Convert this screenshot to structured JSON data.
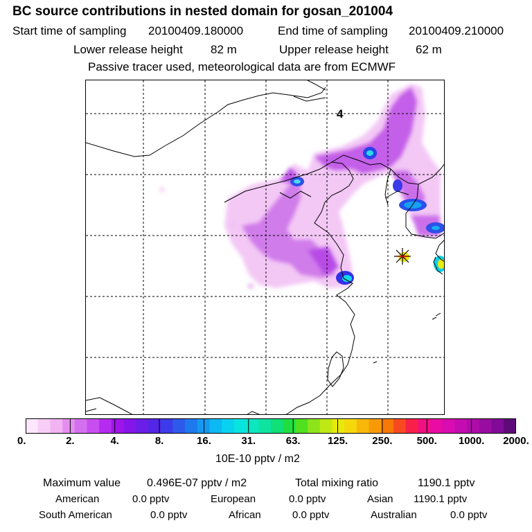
{
  "header": {
    "title": "BC  source contributions in nested domain for gosan_201004",
    "start_label": "Start time of sampling",
    "start_time": "20100409.180000",
    "end_label": "End time of sampling",
    "end_time": "20100409.210000",
    "lower_label": "Lower release height",
    "lower_value": "82 m",
    "upper_label": "Upper release height",
    "upper_value": "62 m",
    "tracer_note": "Passive tracer used, meteorological data are from ECMWF"
  },
  "map": {
    "day_label": "4",
    "release_marker": "asterisk-star-icon"
  },
  "colorbar": {
    "ticks": [
      "0.",
      "2.",
      "4.",
      "8.",
      "16.",
      "31.",
      "63.",
      "125.",
      "250.",
      "500.",
      "1000.",
      "2000."
    ],
    "units": "10E-10 pptv / m2",
    "colors": [
      "#fde7fd",
      "#f8cdf8",
      "#f2b3f2",
      "#e48fef",
      "#d470ef",
      "#c94ef0",
      "#b52bef",
      "#9f14ea",
      "#8416e9",
      "#6b1ee8",
      "#5326e7",
      "#3d3be9",
      "#2e5aeb",
      "#1f79ee",
      "#1499f1",
      "#0db8f3",
      "#08d2f0",
      "#08e5e0",
      "#0de6c0",
      "#0ee3a0",
      "#10df7a",
      "#20de40",
      "#50e020",
      "#8de41a",
      "#c0e814",
      "#e8e80c",
      "#f4d80a",
      "#f8b80a",
      "#f89a08",
      "#f87808",
      "#f84a20",
      "#f8204a",
      "#f01080",
      "#e80ca4",
      "#d80cb0",
      "#c40cb0",
      "#ae0ca8",
      "#980ca0",
      "#820a98",
      "#5e0a78"
    ]
  },
  "summary": {
    "max_label": "Maximum value",
    "max_value": "0.496E-07 pptv / m2",
    "total_label": "Total mixing ratio",
    "total_value": "1190.1 pptv"
  },
  "regions": [
    {
      "name": "American",
      "value": "0.0 pptv"
    },
    {
      "name": "European",
      "value": "0.0 pptv"
    },
    {
      "name": "Asian",
      "value": "1190.1 pptv"
    },
    {
      "name": "South American",
      "value": "0.0 pptv"
    },
    {
      "name": "African",
      "value": "0.0 pptv"
    },
    {
      "name": "Australian",
      "value": "0.0 pptv"
    }
  ]
}
